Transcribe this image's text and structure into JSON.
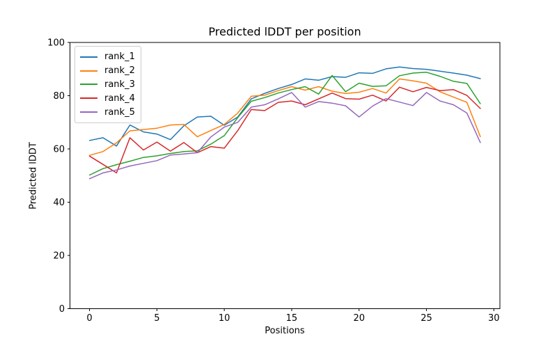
{
  "chart_data": {
    "type": "line",
    "title": "Predicted lDDT per position",
    "xlabel": "Positions",
    "ylabel": "Predicted lDDT",
    "xlim": [
      -1.45,
      30.45
    ],
    "ylim": [
      0,
      100
    ],
    "x_ticks": [
      "0",
      "5",
      "10",
      "15",
      "20",
      "25",
      "30"
    ],
    "x_tick_values": [
      0,
      5,
      10,
      15,
      20,
      25,
      30
    ],
    "y_ticks": [
      "0",
      "20",
      "40",
      "60",
      "80",
      "100"
    ],
    "y_tick_values": [
      0,
      20,
      40,
      60,
      80,
      100
    ],
    "grid": false,
    "legend_position": "upper left",
    "line_width": 1.5,
    "x": [
      0,
      1,
      2,
      3,
      4,
      5,
      6,
      7,
      8,
      9,
      10,
      11,
      12,
      13,
      14,
      15,
      16,
      17,
      18,
      19,
      20,
      21,
      22,
      23,
      24,
      25,
      26,
      27,
      28,
      29
    ],
    "series": [
      {
        "name": "rank_1",
        "color": "#1f77b4",
        "values": [
          63.2,
          64.2,
          61.1,
          69.0,
          66.4,
          65.6,
          63.5,
          68.7,
          72.0,
          72.3,
          68.9,
          72.0,
          78.8,
          80.9,
          82.7,
          84.2,
          86.3,
          85.8,
          87.2,
          86.9,
          88.6,
          88.4,
          90.1,
          90.8,
          90.2,
          89.9,
          89.2,
          88.5,
          87.7,
          86.4
        ]
      },
      {
        "name": "rank_2",
        "color": "#ff7f0e",
        "values": [
          57.6,
          59.0,
          62.3,
          66.8,
          67.3,
          67.8,
          69.0,
          69.2,
          64.6,
          66.9,
          69.2,
          73.5,
          79.8,
          80.2,
          81.9,
          83.4,
          82.1,
          83.4,
          81.7,
          80.8,
          81.3,
          82.7,
          81.0,
          86.3,
          85.6,
          84.7,
          81.5,
          79.5,
          77.5,
          64.6
        ]
      },
      {
        "name": "rank_3",
        "color": "#2ca02c",
        "values": [
          50.2,
          52.6,
          54.1,
          55.4,
          56.8,
          57.4,
          58.3,
          59.0,
          59.3,
          61.8,
          65.0,
          71.8,
          77.9,
          79.3,
          81.0,
          82.3,
          83.4,
          80.6,
          87.6,
          81.5,
          84.7,
          83.5,
          83.7,
          87.5,
          88.5,
          88.8,
          87.3,
          85.4,
          84.6,
          77.0
        ]
      },
      {
        "name": "rank_4",
        "color": "#d62728",
        "values": [
          57.3,
          54.2,
          51.0,
          64.2,
          59.6,
          62.6,
          59.2,
          62.4,
          58.6,
          60.9,
          60.3,
          66.9,
          74.8,
          74.4,
          77.5,
          78.0,
          76.6,
          78.8,
          81.0,
          78.9,
          78.7,
          80.2,
          78.0,
          83.2,
          81.5,
          83.1,
          81.9,
          82.3,
          80.1,
          75.2
        ]
      },
      {
        "name": "rank_5",
        "color": "#9467bd",
        "values": [
          48.8,
          51.0,
          52.1,
          53.6,
          54.6,
          55.6,
          57.7,
          58.1,
          58.6,
          64.5,
          68.2,
          70.0,
          75.7,
          76.6,
          78.8,
          81.2,
          75.7,
          77.8,
          77.2,
          76.2,
          72.0,
          76.1,
          78.9,
          77.6,
          76.3,
          81.2,
          78.0,
          76.6,
          73.5,
          62.4
        ]
      }
    ]
  }
}
